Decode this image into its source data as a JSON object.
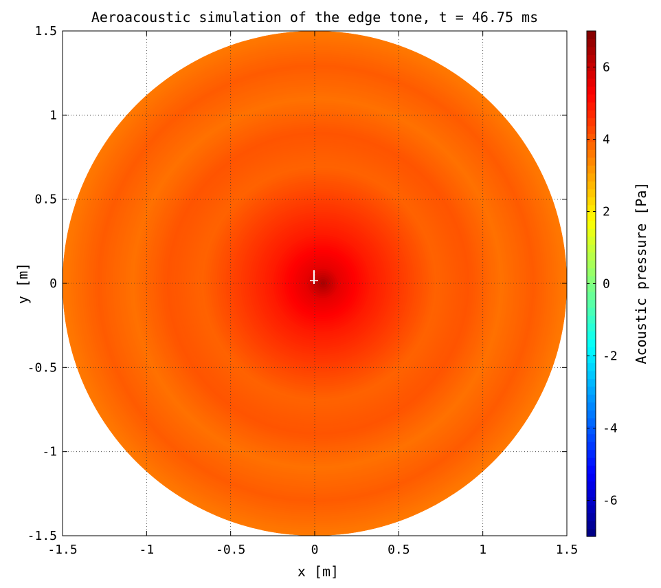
{
  "chart_data": {
    "type": "heatmap",
    "title": "Aeroacoustic simulation of the edge tone, t = 46.75 ms",
    "xlabel": "x [m]",
    "ylabel": "y [m]",
    "xlim": [
      -1.5,
      1.5
    ],
    "ylim": [
      -1.5,
      1.5
    ],
    "x_ticks": [
      -1.5,
      -1,
      -0.5,
      0,
      0.5,
      1,
      1.5
    ],
    "x_tick_labels": [
      "-1.5",
      "-1",
      "-0.5",
      "0",
      "0.5",
      "1",
      "1.5"
    ],
    "y_ticks": [
      -1.5,
      -1,
      -0.5,
      0,
      0.5,
      1,
      1.5
    ],
    "y_tick_labels": [
      "-1.5",
      "-1",
      "-0.5",
      "0",
      "0.5",
      "1",
      "1.5"
    ],
    "grid": true,
    "domain_shape": "circle",
    "domain_radius": 1.5,
    "colorbar": {
      "label": "Acoustic pressure [Pa]",
      "range": [
        -7,
        7
      ],
      "colormap": "jet",
      "ticks": [
        -6,
        -4,
        -2,
        0,
        2,
        4,
        6
      ],
      "tick_labels": [
        "-6",
        "-4",
        "-2",
        "0",
        "2",
        "4",
        "6"
      ]
    },
    "field": {
      "center": [
        0.05,
        0.0
      ],
      "center_pressure": 6.5,
      "rings": [
        {
          "r": 0.0,
          "pressure": 6.5
        },
        {
          "r": 0.1,
          "pressure": 5.6
        },
        {
          "r": 0.3,
          "pressure": 4.9
        },
        {
          "r": 0.5,
          "pressure": 4.4
        },
        {
          "r": 0.7,
          "pressure": 3.9
        },
        {
          "r": 0.9,
          "pressure": 4.1
        },
        {
          "r": 1.1,
          "pressure": 3.7
        },
        {
          "r": 1.3,
          "pressure": 4.0
        },
        {
          "r": 1.5,
          "pressure": 3.6
        }
      ]
    }
  }
}
